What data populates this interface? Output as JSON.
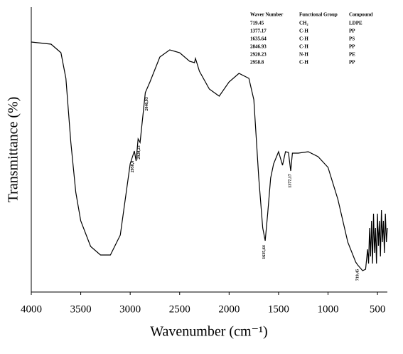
{
  "chart_data": {
    "type": "line",
    "xlabel": "Wavenumber (cm⁻¹)",
    "ylabel": "Transmittance (%)",
    "xlim": [
      4000,
      400
    ],
    "ylim": [
      0,
      100
    ],
    "xticks": [
      4000,
      3500,
      3000,
      2500,
      2000,
      1500,
      1000,
      500
    ],
    "color": "#000000",
    "x": [
      4000,
      3800,
      3700,
      3650,
      3600,
      3550,
      3500,
      3400,
      3300,
      3200,
      3100,
      3000,
      2958,
      2940,
      2920,
      2900,
      2847,
      2800,
      2700,
      2600,
      2500,
      2400,
      2350,
      2340,
      2300,
      2200,
      2100,
      2000,
      1900,
      1800,
      1750,
      1700,
      1660,
      1635,
      1610,
      1580,
      1550,
      1500,
      1460,
      1430,
      1400,
      1377,
      1360,
      1300,
      1200,
      1100,
      1000,
      900,
      800,
      720,
      700,
      650,
      620,
      600,
      590,
      580,
      570,
      560,
      550,
      540,
      530,
      520,
      510,
      500,
      490,
      480,
      470,
      460,
      450,
      440,
      430,
      420,
      410,
      400
    ],
    "values": [
      87.75,
      87,
      84,
      75,
      52.5,
      35,
      25,
      16,
      13,
      13,
      20,
      45,
      49.5,
      46,
      53.75,
      52.5,
      70,
      73.75,
      82.5,
      85,
      84,
      81,
      80.5,
      82,
      77.5,
      71.25,
      68.75,
      73.75,
      76.75,
      75,
      67.5,
      40,
      22.5,
      18,
      27.5,
      40,
      45,
      49.25,
      44.5,
      49.25,
      49,
      42.5,
      48.75,
      48.75,
      49.25,
      47.5,
      43.75,
      32.5,
      17.5,
      10.5,
      9.5,
      7.5,
      8,
      15,
      10,
      22.5,
      12.5,
      25,
      10,
      27.5,
      13.75,
      22.5,
      10,
      27.5,
      16.25,
      25,
      12.5,
      28.75,
      17.5,
      25,
      13.75,
      27.5,
      17.5,
      22.5
    ],
    "annotations": [
      {
        "text": "2958,8",
        "x": 2975,
        "y": 44
      },
      {
        "text": "2920,23",
        "x": 2910,
        "y": 49
      },
      {
        "text": "2846,93",
        "x": 2830,
        "y": 66
      },
      {
        "text": "1635,64",
        "x": 1645,
        "y": 14
      },
      {
        "text": "1377,17",
        "x": 1385,
        "y": 39
      },
      {
        "text": "719,45",
        "x": 700,
        "y": 6
      }
    ],
    "table": {
      "header": [
        "Waver Number",
        "Functional Group",
        "Compound"
      ],
      "rows": [
        [
          "719.45",
          "CH₂",
          "LDPE"
        ],
        [
          "1377.17",
          "C-H",
          "PP"
        ],
        [
          "1635.64",
          "C-H",
          "PS"
        ],
        [
          "2846.93",
          "C-H",
          "PP"
        ],
        [
          "2920.23",
          "N-H",
          "PE"
        ],
        [
          "2958.8",
          "C-H",
          "PP"
        ]
      ]
    }
  }
}
